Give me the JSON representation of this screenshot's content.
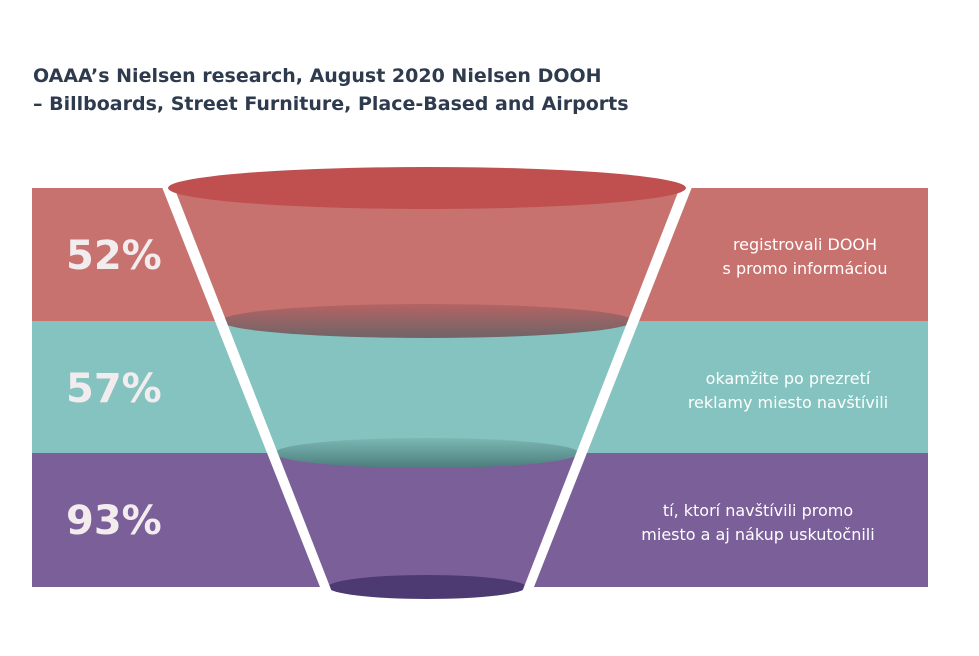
{
  "title": [
    "OAAA’s Nielsen research, August 2020 Nielsen DOOH",
    "– Billboards, Street Furniture, Place-Based and Airports"
  ],
  "stages": [
    {
      "value": "52%",
      "description": [
        "registrovali DOOH",
        "s promo informáciou"
      ]
    },
    {
      "value": "57%",
      "description": [
        "okamžite po prezretí",
        "reklamy miesto navštívili"
      ]
    },
    {
      "value": "93%",
      "description": [
        "tí, ktorí navštívili promo",
        "miesto a aj nákup uskutočnili"
      ]
    }
  ]
}
